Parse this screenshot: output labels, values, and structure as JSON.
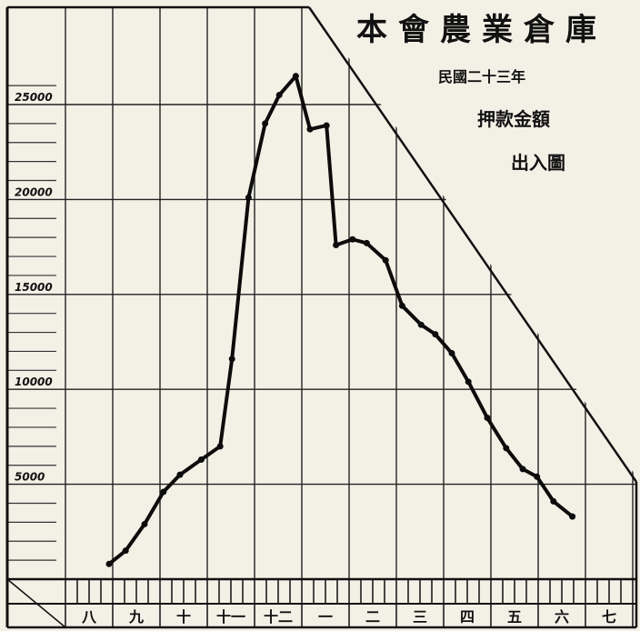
{
  "chart_data": {
    "type": "line",
    "title": "本會農業倉庫",
    "subtitle": "民國二十三年",
    "caption_line1": "押款金額",
    "caption_line2": "出入圖",
    "ylim": [
      0,
      30000
    ],
    "y_ticks": [
      {
        "value": 5000,
        "label": "5000"
      },
      {
        "value": 10000,
        "label": "10000"
      },
      {
        "value": 15000,
        "label": "15000"
      },
      {
        "value": 20000,
        "label": "20000"
      },
      {
        "value": 25000,
        "label": "25000"
      }
    ],
    "x_tick_labels": [
      "八",
      "九",
      "十",
      "十一",
      "十二",
      "一",
      "二",
      "三",
      "四",
      "五",
      "六",
      "七"
    ],
    "grid": true,
    "series": [
      {
        "values": [
          [
            0.0,
            800
          ],
          [
            0.35,
            1500
          ],
          [
            0.75,
            2900
          ],
          [
            1.15,
            4600
          ],
          [
            1.5,
            5500
          ],
          [
            1.95,
            6300
          ],
          [
            2.35,
            7000
          ],
          [
            2.6,
            11600
          ],
          [
            2.95,
            20100
          ],
          [
            3.3,
            24000
          ],
          [
            3.6,
            25500
          ],
          [
            3.95,
            26500
          ],
          [
            4.25,
            23700
          ],
          [
            4.6,
            23900
          ],
          [
            4.8,
            17600
          ],
          [
            5.15,
            17900
          ],
          [
            5.45,
            17700
          ],
          [
            5.85,
            16800
          ],
          [
            6.2,
            14400
          ],
          [
            6.6,
            13400
          ],
          [
            6.9,
            12900
          ],
          [
            7.25,
            11900
          ],
          [
            7.6,
            10400
          ],
          [
            8.0,
            8500
          ],
          [
            8.4,
            6900
          ],
          [
            8.75,
            5800
          ],
          [
            9.05,
            5400
          ],
          [
            9.4,
            4100
          ],
          [
            9.8,
            3300
          ]
        ]
      }
    ]
  }
}
